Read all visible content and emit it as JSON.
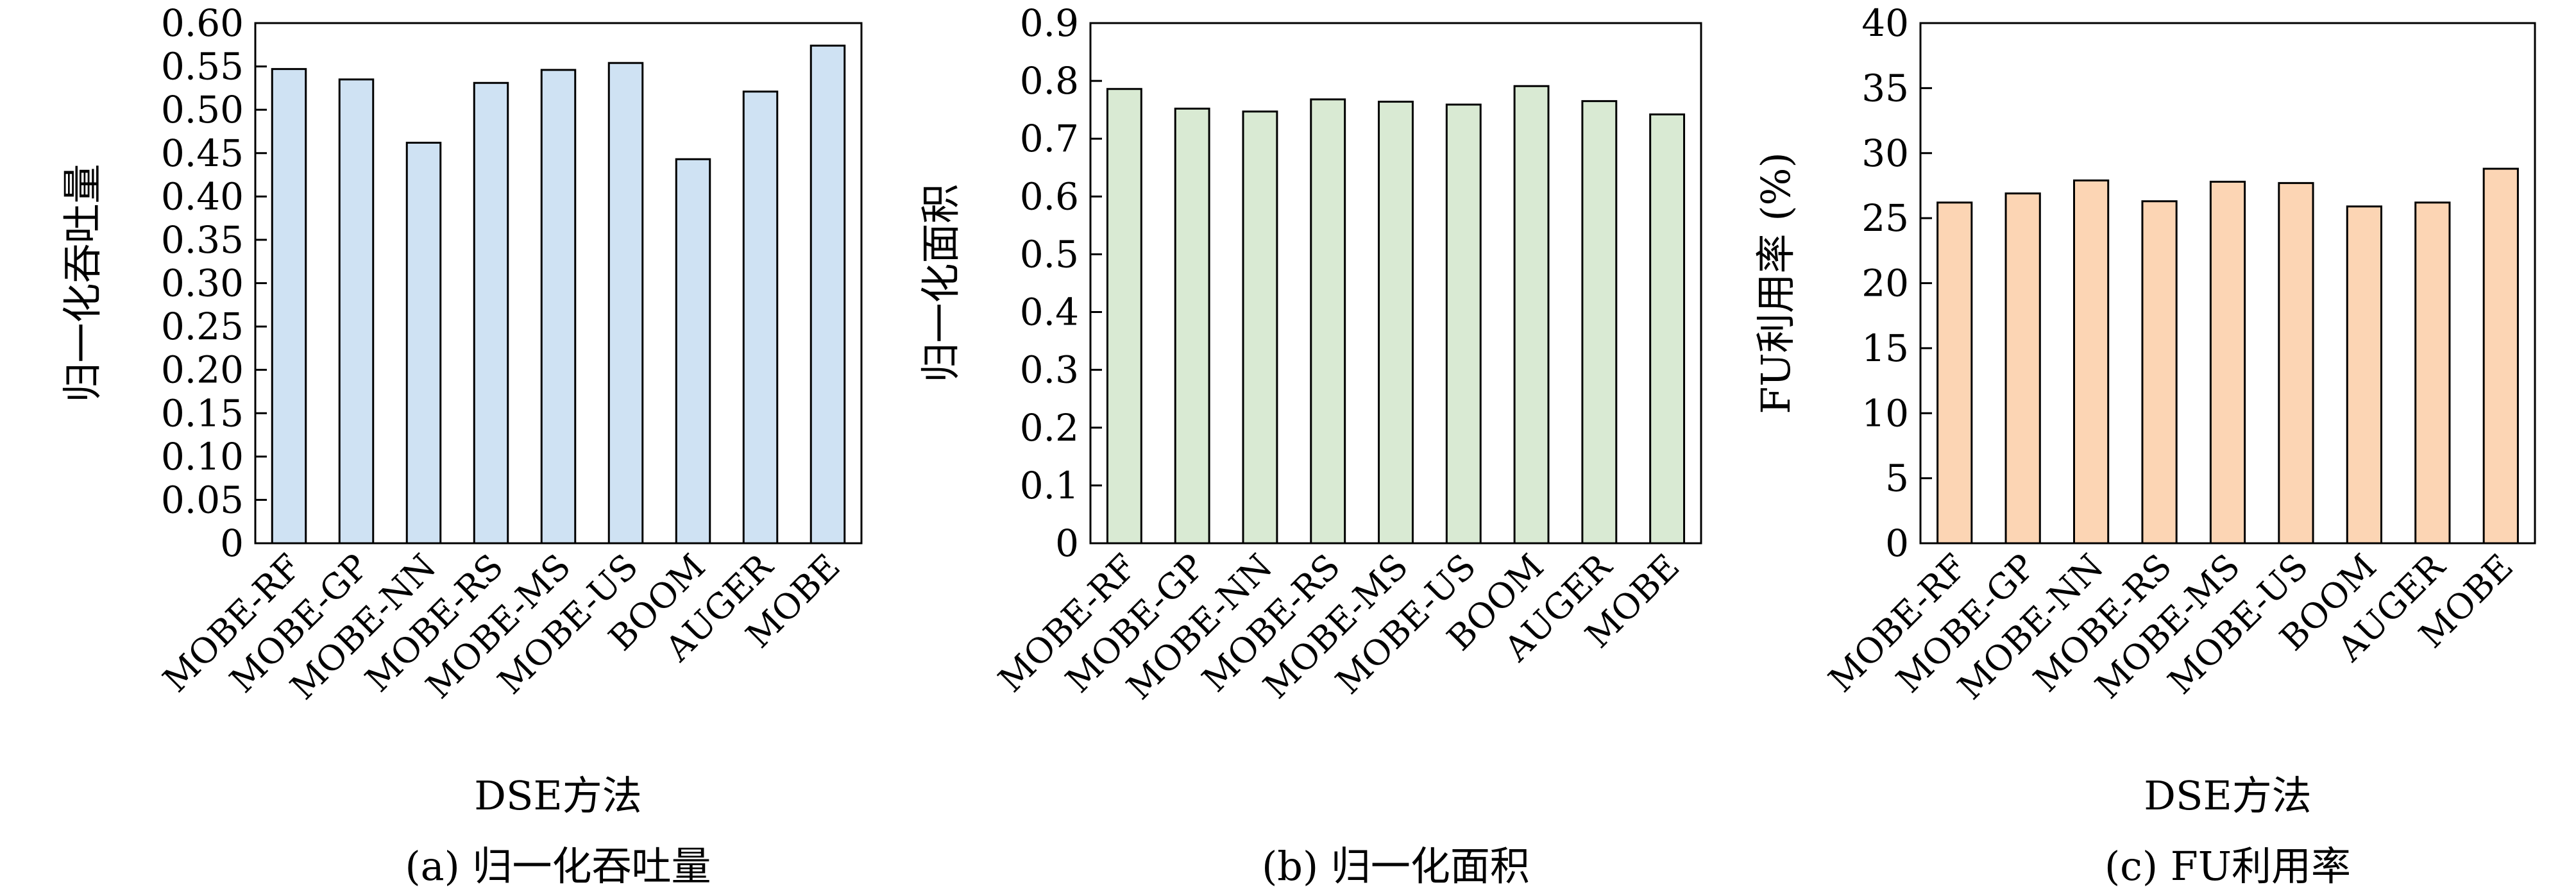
{
  "chart_data": [
    {
      "type": "bar",
      "caption": "(a) 归一化吞吐量",
      "xlabel": "DSE方法",
      "ylabel": "归一化吞吐量",
      "categories": [
        "MOBE-RF",
        "MOBE-GP",
        "MOBE-NN",
        "MOBE-RS",
        "MOBE-MS",
        "MOBE-US",
        "BOOM",
        "AUGER",
        "MOBE"
      ],
      "values": [
        0.547,
        0.535,
        0.462,
        0.531,
        0.546,
        0.554,
        0.443,
        0.521,
        0.574
      ],
      "ylim": [
        0,
        0.6
      ],
      "yticks": [
        "0",
        "0.05",
        "0.10",
        "0.15",
        "0.20",
        "0.25",
        "0.30",
        "0.35",
        "0.40",
        "0.45",
        "0.50",
        "0.55",
        "0.60"
      ],
      "bar_color": "#cfe2f3",
      "grid": false
    },
    {
      "type": "bar",
      "caption": "(b) 归一化面积",
      "xlabel": "",
      "ylabel": "归一化面积",
      "categories": [
        "MOBE-RF",
        "MOBE-GP",
        "MOBE-NN",
        "MOBE-RS",
        "MOBE-MS",
        "MOBE-US",
        "BOOM",
        "AUGER",
        "MOBE"
      ],
      "values": [
        0.786,
        0.752,
        0.747,
        0.768,
        0.764,
        0.759,
        0.791,
        0.765,
        0.742
      ],
      "ylim": [
        0,
        0.9
      ],
      "yticks": [
        "0",
        "0.1",
        "0.2",
        "0.3",
        "0.4",
        "0.5",
        "0.6",
        "0.7",
        "0.8",
        "0.9"
      ],
      "bar_color": "#d9ead3",
      "grid": false
    },
    {
      "type": "bar",
      "caption": "(c) FU利用率",
      "xlabel": "DSE方法",
      "ylabel": "FU利用率 (%)",
      "categories": [
        "MOBE-RF",
        "MOBE-GP",
        "MOBE-NN",
        "MOBE-RS",
        "MOBE-MS",
        "MOBE-US",
        "BOOM",
        "AUGER",
        "MOBE"
      ],
      "values": [
        26.2,
        26.9,
        27.9,
        26.3,
        27.8,
        27.7,
        25.9,
        26.2,
        28.8
      ],
      "ylim": [
        0,
        40
      ],
      "yticks": [
        "0",
        "5",
        "10",
        "15",
        "20",
        "25",
        "30",
        "35",
        "40"
      ],
      "bar_color": "#fcd5b4",
      "grid": false
    }
  ]
}
